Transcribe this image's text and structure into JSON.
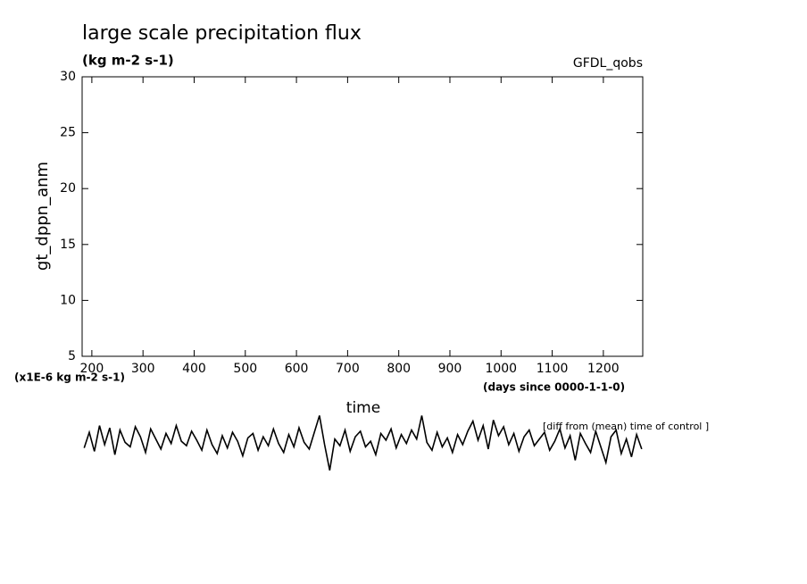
{
  "chart_data": {
    "type": "line",
    "title": "large scale precipitation flux",
    "subtitle": "(kg m-2 s-1)",
    "source_label": "GFDL_qobs",
    "ylabel": "gt_dppn_anm",
    "xlabel": "time",
    "y_unit_note": "(x1E-6 kg m-2 s-1)",
    "x_unit_note": "(days since 0000-1-1-0)",
    "annotation": "[diff from (mean) time of control ]",
    "color": "#000000",
    "xlim": [
      181,
      1277
    ],
    "xticks": [
      200,
      300,
      400,
      500,
      600,
      700,
      800,
      900,
      1000,
      1100,
      1200
    ],
    "ylim": [
      5,
      30
    ],
    "yticks": [
      5,
      10,
      15,
      20,
      25,
      30
    ],
    "x": [
      185,
      195,
      205,
      215,
      225,
      235,
      245,
      255,
      265,
      275,
      285,
      295,
      305,
      315,
      325,
      335,
      345,
      355,
      365,
      375,
      385,
      395,
      405,
      415,
      425,
      435,
      445,
      455,
      465,
      475,
      485,
      495,
      505,
      515,
      525,
      535,
      545,
      555,
      565,
      575,
      585,
      595,
      605,
      615,
      625,
      635,
      645,
      655,
      665,
      675,
      685,
      695,
      705,
      715,
      725,
      735,
      745,
      755,
      765,
      775,
      785,
      795,
      805,
      815,
      825,
      835,
      845,
      855,
      865,
      875,
      885,
      895,
      905,
      915,
      925,
      935,
      945,
      955,
      965,
      975,
      985,
      995,
      1005,
      1015,
      1025,
      1035,
      1045,
      1055,
      1065,
      1075,
      1085,
      1095,
      1105,
      1115,
      1125,
      1135,
      1145,
      1155,
      1165,
      1175,
      1185,
      1195,
      1205,
      1215,
      1225,
      1235,
      1245,
      1255,
      1265,
      1275
    ],
    "values": [
      -3.2,
      -1.8,
      -3.5,
      -1.2,
      -2.9,
      -1.4,
      -3.8,
      -1.6,
      -2.7,
      -3.1,
      -1.3,
      -2.2,
      -3.6,
      -1.5,
      -2.4,
      -3.3,
      -1.9,
      -2.8,
      -1.2,
      -2.6,
      -3.0,
      -1.7,
      -2.5,
      -3.4,
      -1.6,
      -2.9,
      -3.7,
      -2.1,
      -3.2,
      -1.8,
      -2.6,
      -3.9,
      -2.3,
      -1.9,
      -3.4,
      -2.2,
      -3.0,
      -1.5,
      -2.8,
      -3.6,
      -2.0,
      -3.1,
      -1.4,
      -2.7,
      -3.3,
      -1.8,
      -0.3,
      -2.9,
      -5.2,
      -2.4,
      -3.0,
      -1.6,
      -3.5,
      -2.2,
      -1.7,
      -3.1,
      -2.6,
      -3.8,
      -1.9,
      -2.5,
      -1.5,
      -3.2,
      -2.0,
      -2.8,
      -1.6,
      -2.4,
      -0.3,
      -2.7,
      -3.4,
      -1.8,
      -3.1,
      -2.3,
      -3.6,
      -2.0,
      -2.9,
      -1.7,
      -0.8,
      -2.5,
      -1.2,
      -3.3,
      -0.7,
      -2.1,
      -1.3,
      -2.9,
      -1.9,
      -3.5,
      -2.2,
      -1.6,
      -3.0,
      -2.4,
      -1.8,
      -3.4,
      -2.6,
      -1.5,
      -3.2,
      -2.1,
      -4.3,
      -1.9,
      -2.8,
      -3.6,
      -1.7,
      -3.1,
      -4.5,
      -2.2,
      -1.6,
      -3.7,
      -2.4,
      -4.0,
      -2.0,
      -3.3
    ]
  }
}
